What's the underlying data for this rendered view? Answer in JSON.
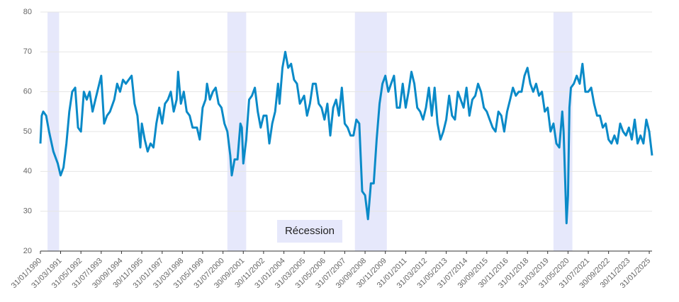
{
  "chart_data": {
    "type": "line",
    "x": [
      "31/01/1990",
      "28/02/1990",
      "31/03/1990",
      "31/05/1990",
      "31/07/1990",
      "31/10/1990",
      "31/01/1991",
      "31/03/1991",
      "31/05/1991",
      "31/07/1991",
      "30/09/1991",
      "30/11/1991",
      "31/01/1992",
      "31/03/1992",
      "31/05/1992",
      "31/07/1992",
      "30/09/1992",
      "30/11/1992",
      "31/01/1993",
      "31/03/1993",
      "31/05/1993",
      "31/07/1993",
      "30/09/1993",
      "30/11/1993",
      "31/01/1994",
      "30/04/1994",
      "30/06/1994",
      "31/08/1994",
      "31/10/1994",
      "31/12/1994",
      "28/02/1995",
      "30/04/1995",
      "30/06/1995",
      "31/08/1995",
      "31/10/1995",
      "30/11/1995",
      "31/01/1996",
      "31/03/1996",
      "31/05/1996",
      "31/07/1996",
      "30/09/1996",
      "30/11/1996",
      "31/01/1997",
      "31/03/1997",
      "31/05/1997",
      "31/07/1997",
      "30/09/1997",
      "30/11/1997",
      "31/12/1997",
      "28/02/1998",
      "30/04/1998",
      "30/06/1998",
      "31/08/1998",
      "31/10/1998",
      "31/01/1999",
      "31/03/1999",
      "31/05/1999",
      "31/07/1999",
      "31/08/1999",
      "31/10/1999",
      "31/12/1999",
      "29/02/2000",
      "30/04/2000",
      "30/06/2000",
      "31/08/2000",
      "31/10/2000",
      "31/12/2000",
      "31/01/2001",
      "31/03/2001",
      "31/05/2001",
      "31/07/2001",
      "31/08/2001",
      "30/09/2001",
      "30/11/2001",
      "31/01/2002",
      "31/03/2002",
      "31/05/2002",
      "31/07/2002",
      "30/09/2002",
      "30/11/2002",
      "31/01/2003",
      "31/03/2003",
      "31/05/2003",
      "31/07/2003",
      "30/09/2003",
      "31/10/2003",
      "31/12/2003",
      "29/02/2004",
      "30/04/2004",
      "30/06/2004",
      "31/08/2004",
      "31/10/2004",
      "31/12/2004",
      "31/03/2005",
      "31/05/2005",
      "31/07/2005",
      "30/09/2005",
      "30/11/2005",
      "31/01/2006",
      "31/03/2006",
      "31/05/2006",
      "31/07/2006",
      "30/09/2006",
      "30/11/2006",
      "31/01/2007",
      "31/03/2007",
      "31/05/2007",
      "31/07/2007",
      "30/09/2007",
      "30/11/2007",
      "31/01/2008",
      "31/03/2008",
      "31/05/2008",
      "31/07/2008",
      "30/09/2008",
      "30/11/2008",
      "31/01/2009",
      "31/03/2009",
      "31/05/2009",
      "31/07/2009",
      "30/09/2009",
      "30/11/2009",
      "31/01/2010",
      "31/03/2010",
      "31/05/2010",
      "31/07/2010",
      "30/09/2010",
      "30/11/2010",
      "31/01/2011",
      "31/03/2011",
      "31/05/2011",
      "31/07/2011",
      "30/09/2011",
      "30/11/2011",
      "31/01/2012",
      "31/03/2012",
      "31/05/2012",
      "31/07/2012",
      "30/09/2012",
      "30/11/2012",
      "31/01/2013",
      "31/03/2013",
      "31/05/2013",
      "31/07/2013",
      "30/09/2013",
      "30/11/2013",
      "31/01/2014",
      "31/03/2014",
      "31/05/2014",
      "31/07/2014",
      "30/09/2014",
      "30/11/2014",
      "31/01/2015",
      "31/03/2015",
      "31/05/2015",
      "31/07/2015",
      "30/09/2015",
      "30/11/2015",
      "31/01/2016",
      "31/03/2016",
      "31/05/2016",
      "31/07/2016",
      "30/09/2016",
      "30/11/2016",
      "31/01/2017",
      "31/03/2017",
      "31/05/2017",
      "31/07/2017",
      "30/09/2017",
      "30/11/2017",
      "31/01/2018",
      "31/03/2018",
      "31/05/2018",
      "31/07/2018",
      "30/09/2018",
      "30/11/2018",
      "31/01/2019",
      "31/03/2019",
      "31/05/2019",
      "31/07/2019",
      "30/09/2019",
      "30/11/2019",
      "31/01/2020",
      "29/02/2020",
      "30/04/2020",
      "31/05/2020",
      "30/06/2020",
      "31/07/2020",
      "30/09/2020",
      "30/11/2020",
      "31/01/2021",
      "31/03/2021",
      "31/05/2021",
      "31/07/2021",
      "30/09/2021",
      "30/11/2021",
      "31/01/2022",
      "31/03/2022",
      "31/05/2022",
      "31/07/2022",
      "30/09/2022",
      "30/11/2022",
      "31/01/2023",
      "31/03/2023",
      "31/05/2023",
      "31/07/2023",
      "30/09/2023",
      "30/11/2023",
      "31/01/2024",
      "31/03/2024",
      "31/05/2024",
      "31/07/2024",
      "30/09/2024",
      "30/11/2024",
      "31/01/2025",
      "31/03/2025"
    ],
    "series": [
      {
        "color": "#0a8ac8",
        "values": [
          47,
          54,
          55,
          54,
          50,
          45,
          42,
          39,
          41,
          47,
          55,
          60,
          61,
          51,
          50,
          60,
          58,
          60,
          55,
          58,
          61,
          64,
          52,
          54,
          55,
          58,
          62,
          60,
          63,
          62,
          63,
          64,
          57,
          54,
          46,
          52,
          48,
          45,
          47,
          46,
          52,
          56,
          52,
          57,
          58,
          60,
          55,
          58,
          65,
          57,
          60,
          55,
          54,
          51,
          51,
          48,
          56,
          58,
          62,
          58,
          60,
          61,
          57,
          56,
          52,
          50,
          44,
          39,
          43,
          43,
          52,
          51,
          42,
          48,
          58,
          59,
          61,
          55,
          51,
          54,
          54,
          47,
          52,
          55,
          62,
          57,
          66,
          70,
          66,
          67,
          63,
          62,
          57,
          59,
          54,
          57,
          62,
          62,
          57,
          56,
          53,
          57,
          49,
          56,
          58,
          54,
          61,
          52,
          51,
          49,
          49,
          53,
          52,
          35,
          34,
          28,
          37,
          37,
          48,
          57,
          62,
          64,
          60,
          62,
          64,
          56,
          56,
          62,
          56,
          60,
          65,
          62,
          56,
          55,
          53,
          56,
          61,
          54,
          61,
          52,
          48,
          50,
          53,
          59,
          54,
          53,
          60,
          58,
          56,
          61,
          54,
          58,
          59,
          62,
          60,
          56,
          55,
          53,
          51,
          50,
          55,
          54,
          50,
          55,
          58,
          61,
          59,
          60,
          60,
          64,
          66,
          62,
          60,
          62,
          59,
          60,
          55,
          56,
          50,
          52,
          47,
          46,
          55,
          50,
          27,
          34,
          56,
          61,
          62,
          64,
          62,
          67,
          60,
          60,
          61,
          57,
          54,
          54,
          51,
          52,
          48,
          47,
          49,
          47,
          52,
          50,
          49,
          51,
          48,
          53,
          47,
          49,
          47,
          53,
          50,
          44
        ]
      }
    ],
    "recessions": [
      {
        "start": "30/06/1990",
        "end": "28/02/1991"
      },
      {
        "start": "31/10/2000",
        "end": "30/11/2001"
      },
      {
        "start": "29/02/2008",
        "end": "31/12/2009"
      },
      {
        "start": "31/07/2019",
        "end": "31/08/2020"
      }
    ],
    "recession_label": "Récession",
    "recession_color": "#e6e8fb",
    "xlim": [
      "31/01/1990",
      "31/03/2025"
    ],
    "xticks": [
      "31/01/1990",
      "31/03/1991",
      "31/05/1992",
      "31/07/1993",
      "30/09/1994",
      "30/11/1995",
      "31/01/1997",
      "31/03/1998",
      "31/05/1999",
      "31/07/2000",
      "30/09/2001",
      "30/11/2002",
      "31/01/2004",
      "31/03/2005",
      "31/05/2006",
      "31/07/2007",
      "30/09/2008",
      "30/11/2009",
      "31/01/2011",
      "31/03/2012",
      "31/05/2013",
      "31/07/2014",
      "30/09/2015",
      "30/11/2016",
      "31/01/2018",
      "31/03/2019",
      "31/05/2020",
      "31/07/2021",
      "30/09/2022",
      "30/11/2023",
      "31/01/2025"
    ],
    "ylim": [
      20,
      80
    ],
    "yticks": [
      20,
      30,
      40,
      50,
      60,
      70,
      80
    ],
    "grid": true
  }
}
